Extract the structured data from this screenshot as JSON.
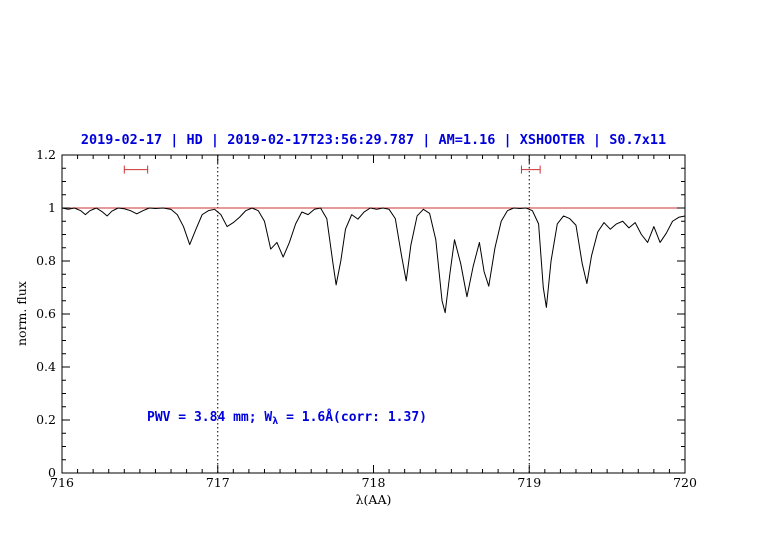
{
  "header": {
    "text": "2019-02-17 | HD | 2019-02-17T23:56:29.787 | AM=1.16 | XSHOOTER | S0.7x11"
  },
  "annotation": {
    "prefix": "PWV = 3.84 mm; W",
    "sub": "λ",
    "suffix": " = 1.6Å(corr: 1.37)"
  },
  "axes": {
    "x_label": "λ(AA)",
    "y_label": "norm. flux"
  },
  "colors": {
    "text_blue": "#0000dd",
    "line_red": "#cc3333",
    "spectrum": "#000000",
    "axis": "#000000"
  },
  "chart_data": {
    "type": "line",
    "title": "2019-02-17 | HD | 2019-02-17T23:56:29.787 | AM=1.16 | XSHOOTER | S0.7x11",
    "xlabel": "λ(AA)",
    "ylabel": "norm. flux",
    "x_range": [
      716,
      720
    ],
    "y_range": [
      0,
      1.2
    ],
    "x_ticks": [
      716,
      717,
      718,
      719,
      720
    ],
    "x_tick_labels": [
      "716",
      "717",
      "718",
      "719",
      "720"
    ],
    "y_ticks": [
      0,
      0.2,
      0.4,
      0.6,
      0.8,
      1,
      1.2
    ],
    "y_tick_labels": [
      "0",
      "0.2",
      "0.4",
      "0.6",
      "0.8",
      "1",
      "1.2"
    ],
    "x_minor_step": 0.1,
    "y_minor_step": 0.05,
    "grid": "off",
    "dotted_vlines_x": [
      717,
      719
    ],
    "continuum_y": 1.0,
    "red_markers": [
      {
        "x1": 716.4,
        "x2": 716.55,
        "y": 1.145
      },
      {
        "x1": 718.95,
        "x2": 719.07,
        "y": 1.145
      }
    ],
    "series": [
      {
        "name": "telluric-absorption-spectrum",
        "points": [
          [
            716.0,
            1.0
          ],
          [
            716.04,
            0.995
          ],
          [
            716.08,
            1.0
          ],
          [
            716.12,
            0.99
          ],
          [
            716.15,
            0.975
          ],
          [
            716.18,
            0.99
          ],
          [
            716.22,
            1.0
          ],
          [
            716.26,
            0.985
          ],
          [
            716.29,
            0.97
          ],
          [
            716.32,
            0.988
          ],
          [
            716.36,
            1.0
          ],
          [
            716.4,
            0.997
          ],
          [
            716.44,
            0.99
          ],
          [
            716.48,
            0.978
          ],
          [
            716.52,
            0.99
          ],
          [
            716.56,
            1.0
          ],
          [
            716.6,
            0.998
          ],
          [
            716.65,
            1.0
          ],
          [
            716.7,
            0.995
          ],
          [
            716.74,
            0.975
          ],
          [
            716.78,
            0.93
          ],
          [
            716.82,
            0.862
          ],
          [
            716.86,
            0.92
          ],
          [
            716.9,
            0.975
          ],
          [
            716.94,
            0.99
          ],
          [
            716.98,
            0.995
          ],
          [
            717.02,
            0.975
          ],
          [
            717.06,
            0.93
          ],
          [
            717.1,
            0.945
          ],
          [
            717.14,
            0.965
          ],
          [
            717.18,
            0.99
          ],
          [
            717.22,
            1.0
          ],
          [
            717.26,
            0.99
          ],
          [
            717.3,
            0.95
          ],
          [
            717.34,
            0.845
          ],
          [
            717.38,
            0.87
          ],
          [
            717.42,
            0.815
          ],
          [
            717.46,
            0.87
          ],
          [
            717.5,
            0.94
          ],
          [
            717.54,
            0.985
          ],
          [
            717.58,
            0.975
          ],
          [
            717.62,
            0.995
          ],
          [
            717.66,
            1.0
          ],
          [
            717.7,
            0.96
          ],
          [
            717.74,
            0.79
          ],
          [
            717.76,
            0.71
          ],
          [
            717.79,
            0.8
          ],
          [
            717.82,
            0.92
          ],
          [
            717.86,
            0.975
          ],
          [
            717.9,
            0.958
          ],
          [
            717.94,
            0.985
          ],
          [
            717.98,
            1.0
          ],
          [
            718.02,
            0.995
          ],
          [
            718.06,
            1.0
          ],
          [
            718.1,
            0.995
          ],
          [
            718.14,
            0.96
          ],
          [
            718.18,
            0.82
          ],
          [
            718.21,
            0.725
          ],
          [
            718.24,
            0.86
          ],
          [
            718.28,
            0.97
          ],
          [
            718.32,
            0.995
          ],
          [
            718.36,
            0.98
          ],
          [
            718.4,
            0.88
          ],
          [
            718.44,
            0.65
          ],
          [
            718.46,
            0.605
          ],
          [
            718.49,
            0.75
          ],
          [
            718.52,
            0.88
          ],
          [
            718.56,
            0.79
          ],
          [
            718.6,
            0.665
          ],
          [
            718.64,
            0.78
          ],
          [
            718.68,
            0.87
          ],
          [
            718.71,
            0.76
          ],
          [
            718.74,
            0.705
          ],
          [
            718.78,
            0.85
          ],
          [
            718.82,
            0.95
          ],
          [
            718.86,
            0.99
          ],
          [
            718.9,
            1.0
          ],
          [
            718.94,
            0.998
          ],
          [
            718.98,
            1.0
          ],
          [
            719.02,
            0.99
          ],
          [
            719.06,
            0.94
          ],
          [
            719.09,
            0.7
          ],
          [
            719.11,
            0.625
          ],
          [
            719.14,
            0.8
          ],
          [
            719.18,
            0.94
          ],
          [
            719.22,
            0.97
          ],
          [
            719.26,
            0.96
          ],
          [
            719.3,
            0.935
          ],
          [
            719.34,
            0.79
          ],
          [
            719.37,
            0.715
          ],
          [
            719.4,
            0.82
          ],
          [
            719.44,
            0.91
          ],
          [
            719.48,
            0.945
          ],
          [
            719.52,
            0.92
          ],
          [
            719.56,
            0.94
          ],
          [
            719.6,
            0.95
          ],
          [
            719.64,
            0.925
          ],
          [
            719.68,
            0.945
          ],
          [
            719.72,
            0.9
          ],
          [
            719.76,
            0.87
          ],
          [
            719.8,
            0.93
          ],
          [
            719.84,
            0.87
          ],
          [
            719.88,
            0.905
          ],
          [
            719.92,
            0.95
          ],
          [
            719.96,
            0.965
          ],
          [
            720.0,
            0.97
          ]
        ]
      }
    ]
  }
}
